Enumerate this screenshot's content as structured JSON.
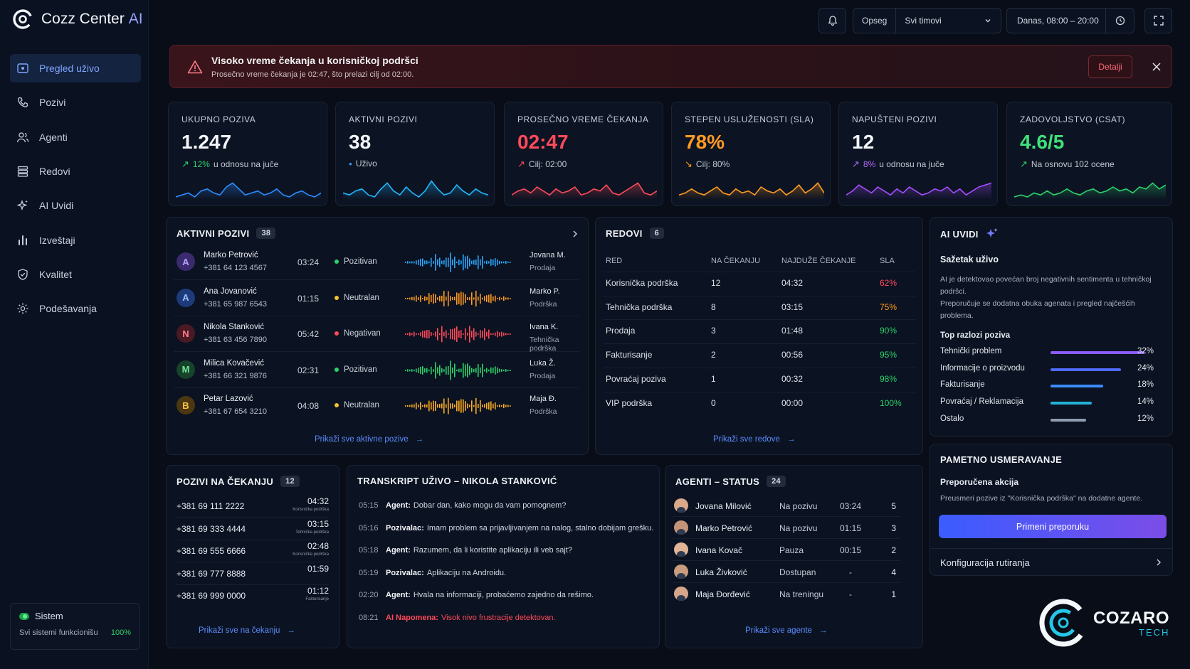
{
  "app": {
    "name": "Cozz Center",
    "ai": "AI"
  },
  "nav": [
    {
      "label": "Pregled uživo",
      "icon": "live-icon",
      "active": true
    },
    {
      "label": "Pozivi",
      "icon": "phone-icon"
    },
    {
      "label": "Agenti",
      "icon": "users-icon"
    },
    {
      "label": "Redovi",
      "icon": "queue-icon"
    },
    {
      "label": "AI Uvidi",
      "icon": "sparkle-icon"
    },
    {
      "label": "Izveštaji",
      "icon": "bar-chart-icon"
    },
    {
      "label": "Kvalitet",
      "icon": "shield-icon"
    },
    {
      "label": "Podešavanja",
      "icon": "gear-icon"
    }
  ],
  "system": {
    "title": "Sistem",
    "status": "Svi sistemi funkcionišu",
    "pct": "100%"
  },
  "topbar": {
    "scope_label": "Opseg",
    "scope_value": "Svi timovi",
    "time_range": "Danas, 08:00 – 20:00"
  },
  "alert": {
    "title": "Visoko vreme čekanja u korisničkoj podršci",
    "desc": "Prosečno vreme čekanja je 02:47, što prelazi cilj od 02:00.",
    "button": "Detalji"
  },
  "kpis": [
    {
      "label": "UKUPNO POZIVA",
      "value": "1.247",
      "sub_hl": "12%",
      "sub": "u odnosu na juče",
      "color": "#2d8cff",
      "hl_color": "#2bd26a",
      "arrow": "↗"
    },
    {
      "label": "AKTIVNI POZIVI",
      "value": "38",
      "sub_hl": "",
      "sub": "Uživo",
      "color": "#22b7ff",
      "hl_color": "#3aa0ff",
      "arrow": "●"
    },
    {
      "label": "PROSEČNO VREME ČEKANJA",
      "value": "02:47",
      "sub_hl": "",
      "sub": "Cilj: 02:00",
      "color": "#ff4a5a",
      "hl_color": "#ff4a5a",
      "arrow": "↗",
      "value_color": "#ff4a5a"
    },
    {
      "label": "STEPEN USLUŽENOSTI (SLA)",
      "value": "78%",
      "sub_hl": "",
      "sub": "Cilj: 80%",
      "color": "#ff9a22",
      "hl_color": "#ff9a22",
      "arrow": "↘",
      "value_color": "#ff9a22"
    },
    {
      "label": "NAPUŠTENI POZIVI",
      "value": "12",
      "sub_hl": "8%",
      "sub": "u odnosu na juče",
      "color": "#a54dff",
      "hl_color": "#b36bff",
      "arrow": "↗"
    },
    {
      "label": "ZADOVOLJSTVO (CSAT)",
      "value": "4.6/5",
      "sub_hl": "",
      "sub": "Na osnovu 102 ocene",
      "color": "#2bd26a",
      "hl_color": "#2bd26a",
      "arrow": "↗",
      "value_color": "#3ee07a"
    }
  ],
  "active_calls": {
    "title": "AKTIVNI POZIVI",
    "count": "38",
    "link": "Prikaži sve aktivne pozive",
    "rows": [
      {
        "initial": "A",
        "name": "Marko Petrović",
        "phone": "+381 64 123 4567",
        "time": "03:24",
        "sentiment": "Pozitivan",
        "agent": "Jovana M.",
        "team": "Prodaja",
        "av_bg": "#3b2a6e",
        "av_fg": "#b6a4ff",
        "s_color": "#2bd26a",
        "wave": "#2aa8ff"
      },
      {
        "initial": "A",
        "name": "Ana Jovanović",
        "phone": "+381 65 987 6543",
        "time": "01:15",
        "sentiment": "Neutralan",
        "agent": "Marko P.",
        "team": "Podrška",
        "av_bg": "#1d3b7a",
        "av_fg": "#9cc0ff",
        "s_color": "#f2c230",
        "wave": "#ff9a22"
      },
      {
        "initial": "N",
        "name": "Nikola Stanković",
        "phone": "+381 63 456 7890",
        "time": "05:42",
        "sentiment": "Negativan",
        "agent": "Ivana K.",
        "team": "Tehnička podrška",
        "av_bg": "#4a1a24",
        "av_fg": "#ff7d8a",
        "s_color": "#ff4a5a",
        "wave": "#ff4a5a"
      },
      {
        "initial": "M",
        "name": "Milica Kovačević",
        "phone": "+381 66 321 9876",
        "time": "02:31",
        "sentiment": "Pozitivan",
        "agent": "Luka Ž.",
        "team": "Prodaja",
        "av_bg": "#16432a",
        "av_fg": "#6fe39a",
        "s_color": "#2bd26a",
        "wave": "#2bd26a"
      },
      {
        "initial": "B",
        "name": "Petar Lazović",
        "phone": "+381 67 654 3210",
        "time": "04:08",
        "sentiment": "Neutralan",
        "agent": "Maja Đ.",
        "team": "Podrška",
        "av_bg": "#4b3710",
        "av_fg": "#ffc44a",
        "s_color": "#f2c230",
        "wave": "#ffae22"
      }
    ]
  },
  "queues": {
    "title": "REDOVI",
    "count": "6",
    "link": "Prikaži sve redove",
    "headers": [
      "RED",
      "NA ČEKANJU",
      "NAJDUŽE ČEKANJE",
      "SLA"
    ],
    "rows": [
      {
        "name": "Korisnička podrška",
        "waiting": "12",
        "longest": "04:32",
        "sla": "62%",
        "sla_color": "#ff4a5a"
      },
      {
        "name": "Tehnička podrška",
        "waiting": "8",
        "longest": "03:15",
        "sla": "75%",
        "sla_color": "#ff9a22"
      },
      {
        "name": "Prodaja",
        "waiting": "3",
        "longest": "01:48",
        "sla": "90%",
        "sla_color": "#2bd26a"
      },
      {
        "name": "Fakturisanje",
        "waiting": "2",
        "longest": "00:56",
        "sla": "95%",
        "sla_color": "#2bd26a"
      },
      {
        "name": "Povraćaj poziva",
        "waiting": "1",
        "longest": "00:32",
        "sla": "98%",
        "sla_color": "#2bd26a"
      },
      {
        "name": "VIP podrška",
        "waiting": "0",
        "longest": "00:00",
        "sla": "100%",
        "sla_color": "#2bd26a"
      }
    ]
  },
  "ai_insights": {
    "title": "AI UVIDI",
    "summary_title": "Sažetak uživo",
    "summary": "AI je detektovao povećan broj negativnih sentimenta u tehničkoj podršci.",
    "summary2": "Preporučuje se dodatna obuka agenata i pregled najčešćih problema.",
    "reasons_title": "Top razlozi poziva",
    "reasons": [
      {
        "label": "Tehnički problem",
        "pct": "32%",
        "value": 32,
        "color": "#8a5cff"
      },
      {
        "label": "Informacije o proizvodu",
        "pct": "24%",
        "value": 24,
        "color": "#4f6bff"
      },
      {
        "label": "Fakturisanje",
        "pct": "18%",
        "value": 18,
        "color": "#3b8cff"
      },
      {
        "label": "Povraćaj / Reklamacija",
        "pct": "14%",
        "value": 14,
        "color": "#22b3d6"
      },
      {
        "label": "Ostalo",
        "pct": "12%",
        "value": 12,
        "color": "#8f9bb0"
      }
    ]
  },
  "pending": {
    "title": "POZIVI NA ČEKANJU",
    "count": "12",
    "link": "Prikaži sve na čekanju",
    "rows": [
      {
        "phone": "+381 69 111 2222",
        "time": "04:32",
        "queue": "Korisnička podrška"
      },
      {
        "phone": "+381 69 333 4444",
        "time": "03:15",
        "queue": "Tehnička podrška"
      },
      {
        "phone": "+381 69 555 6666",
        "time": "02:48",
        "queue": "Korisnička podrška"
      },
      {
        "phone": "+381 69 777 8888",
        "time": "01:59",
        "queue": ""
      },
      {
        "phone": "+381 69 999 0000",
        "time": "01:12",
        "queue": "Fakturisanje"
      }
    ]
  },
  "transcript": {
    "title": "TRANSKRIPT UŽIVO  –  NIKOLA STANKOVIĆ",
    "lines": [
      {
        "t": "05:15",
        "who": "Agent:",
        "text": "Dobar dan, kako mogu da vam pomognem?"
      },
      {
        "t": "05:16",
        "who": "Pozivalac:",
        "text": "Imam problem sa prijavljivanjem na nalog, stalno dobijam grešku."
      },
      {
        "t": "05:18",
        "who": "Agent:",
        "text": "Razumem, da li koristite aplikaciju ili veb sajt?"
      },
      {
        "t": "05:19",
        "who": "Pozivalac:",
        "text": "Aplikaciju na Androidu."
      },
      {
        "t": "02:20",
        "who": "Agent:",
        "text": "Hvala na informaciji, probaćemo zajedno da rešimo."
      },
      {
        "t": "08:21",
        "who": "AI Napomena:",
        "text": "Visok nivo frustracije detektovan.",
        "alert": true
      }
    ]
  },
  "agents": {
    "title": "AGENTI – STATUS",
    "count": "24",
    "link": "Prikaži sve agente",
    "rows": [
      {
        "name": "Jovana Milović",
        "status": "Na pozivu",
        "time": "03:24",
        "calls": "5"
      },
      {
        "name": "Marko Petrović",
        "status": "Na pozivu",
        "time": "01:15",
        "calls": "3"
      },
      {
        "name": "Ivana Kovač",
        "status": "Pauza",
        "time": "00:15",
        "calls": "2"
      },
      {
        "name": "Luka Živković",
        "status": "Dostupan",
        "time": "-",
        "calls": "4"
      },
      {
        "name": "Maja Đorđević",
        "status": "Na treningu",
        "time": "-",
        "calls": "1"
      }
    ]
  },
  "routing": {
    "title": "PAMETNO USMERAVANJE",
    "action_title": "Preporučena akcija",
    "action": "Preusmeri pozive iz \"Korisnička podrška\" na dodatne agente.",
    "button": "Primeni preporuku",
    "config": "Konfiguracija rutiranja"
  },
  "brand": {
    "name": "COZARO",
    "sub": "TECH"
  }
}
